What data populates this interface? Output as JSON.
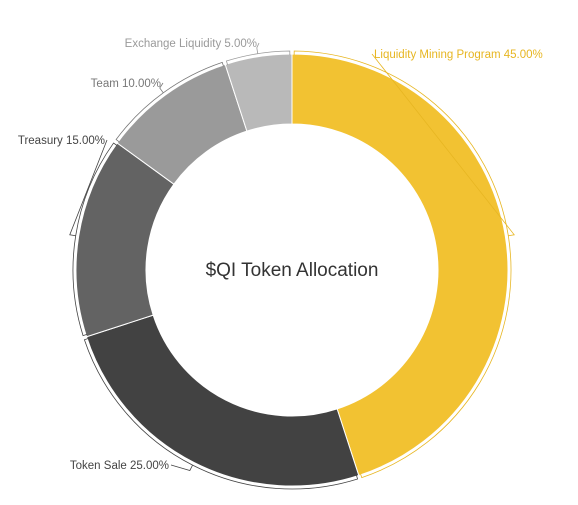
{
  "chart_data": {
    "type": "pie",
    "style": "donut",
    "center_text": "$QI Token Allocation",
    "categories": [
      "Liquidity Mining Program",
      "Token Sale",
      "Treasury",
      "Team",
      "Exchange Liquidity"
    ],
    "values": [
      45.0,
      25.0,
      15.0,
      10.0,
      5.0
    ],
    "value_labels": [
      "45.00%",
      "25.00%",
      "15.00%",
      "10.00%",
      "5.00%"
    ],
    "colors": [
      "#f2c232",
      "#424242",
      "#636363",
      "#9a9a9a",
      "#b9b9b9"
    ],
    "label_colors": [
      "#e7b622",
      "#444444",
      "#444444",
      "#777777",
      "#9a9a9a"
    ],
    "legend": "none",
    "start_angle_deg": 0,
    "direction": "clockwise"
  }
}
